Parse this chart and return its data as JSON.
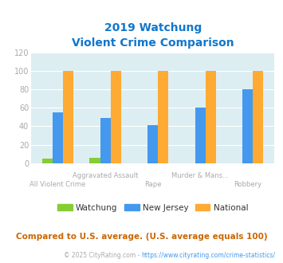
{
  "title_line1": "2019 Watchung",
  "title_line2": "Violent Crime Comparison",
  "categories": [
    "All Violent Crime",
    "Aggravated Assault",
    "Rape",
    "Murder & Mans...",
    "Robbery"
  ],
  "cat_row1": [
    "",
    "Aggravated Assault",
    "",
    "Murder & Mans...",
    ""
  ],
  "cat_row2": [
    "All Violent Crime",
    "",
    "Rape",
    "",
    "Robbery"
  ],
  "watchung": [
    5,
    6,
    0,
    0,
    0
  ],
  "new_jersey": [
    55,
    49,
    41,
    60,
    80
  ],
  "national": [
    100,
    100,
    100,
    100,
    100
  ],
  "bar_colors": [
    "#88cc33",
    "#4499ee",
    "#ffaa33"
  ],
  "legend_labels": [
    "Watchung",
    "New Jersey",
    "National"
  ],
  "ylim": [
    0,
    120
  ],
  "yticks": [
    0,
    20,
    40,
    60,
    80,
    100,
    120
  ],
  "plot_bg_color": "#ddeef3",
  "fig_bg_color": "#ffffff",
  "title_color": "#1177cc",
  "footer_text": "Compared to U.S. average. (U.S. average equals 100)",
  "footer_color": "#cc6600",
  "credit_prefix": "© 2025 CityRating.com - ",
  "credit_link": "https://www.cityrating.com/crime-statistics/",
  "credit_color": "#aaaaaa",
  "credit_link_color": "#4499ee",
  "grid_color": "#ffffff",
  "tick_color": "#aaaaaa",
  "bar_width": 0.22
}
